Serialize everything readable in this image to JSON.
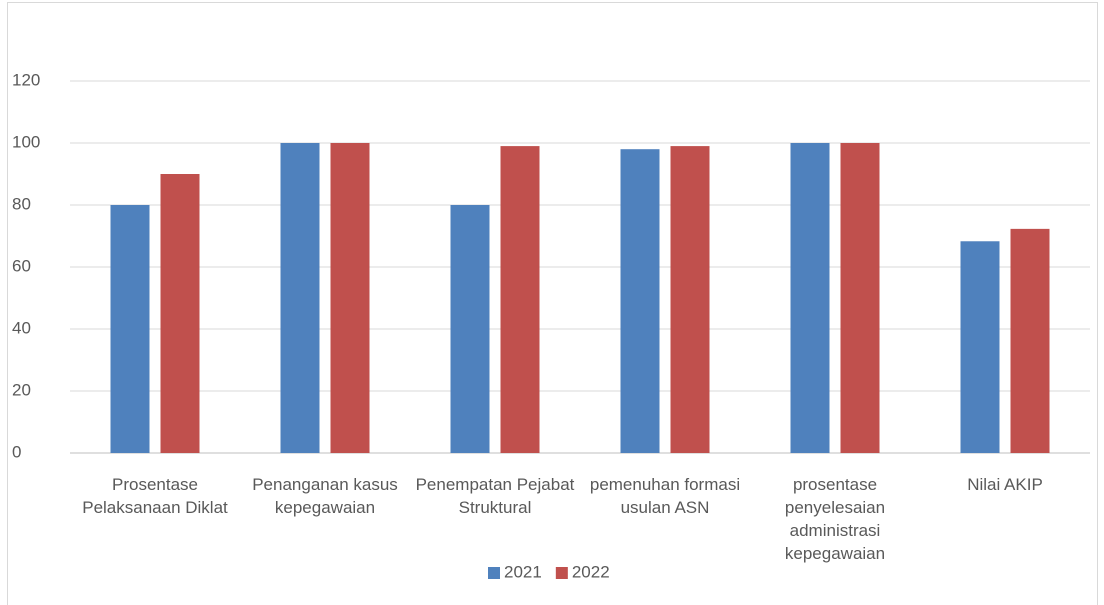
{
  "chart_data": {
    "type": "bar",
    "categories": [
      "Prosentase Pelaksanaan Diklat",
      "Penanganan kasus kepegawaian",
      "Penempatan Pejabat Struktural",
      "pemenuhan formasi usulan ASN",
      "prosentase penyelesaian administrasi kepegawaian",
      "Nilai AKIP"
    ],
    "series": [
      {
        "name": "2021",
        "color": "#4f81bd",
        "values": [
          80,
          100,
          80,
          98,
          100,
          68.3
        ]
      },
      {
        "name": "2022",
        "color": "#c0504d",
        "values": [
          90,
          100,
          99,
          99,
          100,
          72.3
        ]
      }
    ],
    "ylim": [
      0,
      140
    ],
    "yticks": [
      0,
      20,
      40,
      60,
      80,
      100,
      120
    ],
    "grid": true,
    "legend": "bottom"
  }
}
